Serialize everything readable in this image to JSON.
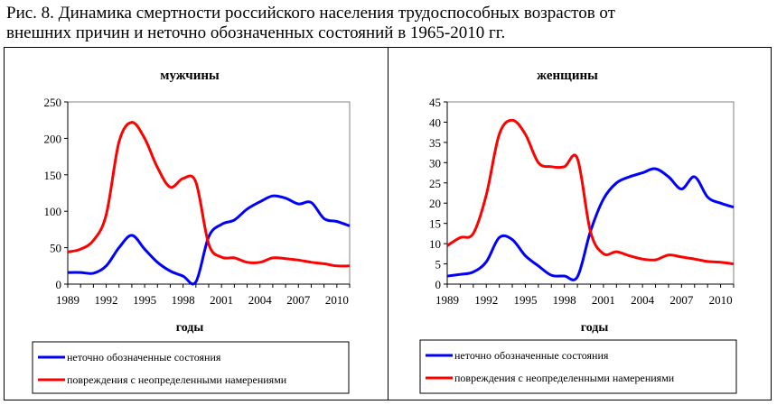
{
  "figure": {
    "title_line1": "Рис. 8. Динамика смертности российского населения трудоспособных возрастов от",
    "title_line2": "внешних причин и неточно обозначенных состояний в 1965-2010 гг."
  },
  "chart_data": [
    {
      "type": "line",
      "title": "мужчины",
      "xlabel": "годы",
      "ylabel": "",
      "xlim": [
        1989,
        2011
      ],
      "ylim": [
        0,
        250
      ],
      "yticks": [
        0,
        50,
        100,
        150,
        200,
        250
      ],
      "xticks": [
        1989,
        1992,
        1995,
        1998,
        2001,
        2004,
        2007,
        2010
      ],
      "x": [
        1989,
        1990,
        1991,
        1992,
        1993,
        1994,
        1995,
        1996,
        1997,
        1998,
        1999,
        2000,
        2001,
        2002,
        2003,
        2004,
        2005,
        2006,
        2007,
        2008,
        2009,
        2010,
        2011
      ],
      "series": [
        {
          "name": "неточно обозначенные состояния",
          "color": "#0000ff",
          "values": [
            16,
            16,
            15,
            25,
            50,
            67,
            48,
            30,
            18,
            11,
            3,
            65,
            82,
            88,
            103,
            113,
            121,
            118,
            110,
            112,
            90,
            86,
            80
          ]
        },
        {
          "name": "повреждения с неопределенными намерениями",
          "color": "#ff0000",
          "values": [
            44,
            48,
            60,
            95,
            195,
            222,
            200,
            160,
            133,
            145,
            140,
            55,
            37,
            36,
            30,
            30,
            36,
            35,
            33,
            30,
            28,
            25,
            25
          ]
        }
      ],
      "legend": "bottom"
    },
    {
      "type": "line",
      "title": "женщины",
      "xlabel": "годы",
      "ylabel": "",
      "xlim": [
        1989,
        2011
      ],
      "ylim": [
        0,
        45
      ],
      "yticks": [
        0,
        5,
        10,
        15,
        20,
        25,
        30,
        35,
        40,
        45
      ],
      "xticks": [
        1989,
        1992,
        1995,
        1998,
        2001,
        2004,
        2007,
        2010
      ],
      "x": [
        1989,
        1990,
        1991,
        1992,
        1993,
        1994,
        1995,
        1996,
        1997,
        1998,
        1999,
        2000,
        2001,
        2002,
        2003,
        2004,
        2005,
        2006,
        2007,
        2008,
        2009,
        2010,
        2011
      ],
      "series": [
        {
          "name": "неточно обозначенные состояния",
          "color": "#0000ff",
          "values": [
            2,
            2.4,
            3,
            5.5,
            11.5,
            11,
            7,
            4.5,
            2.2,
            2,
            1.8,
            13,
            21,
            25,
            26.5,
            27.5,
            28.5,
            26.5,
            23.5,
            26.5,
            21.5,
            20,
            19
          ]
        },
        {
          "name": "повреждения с неопределенными намерениями",
          "color": "#ff0000",
          "values": [
            9.5,
            11.5,
            12.5,
            22,
            37,
            40.5,
            37,
            30,
            29,
            29,
            31,
            13,
            7.5,
            8,
            7,
            6.2,
            6,
            7.2,
            6.7,
            6.2,
            5.6,
            5.4,
            5
          ]
        }
      ],
      "legend": "bottom"
    }
  ]
}
